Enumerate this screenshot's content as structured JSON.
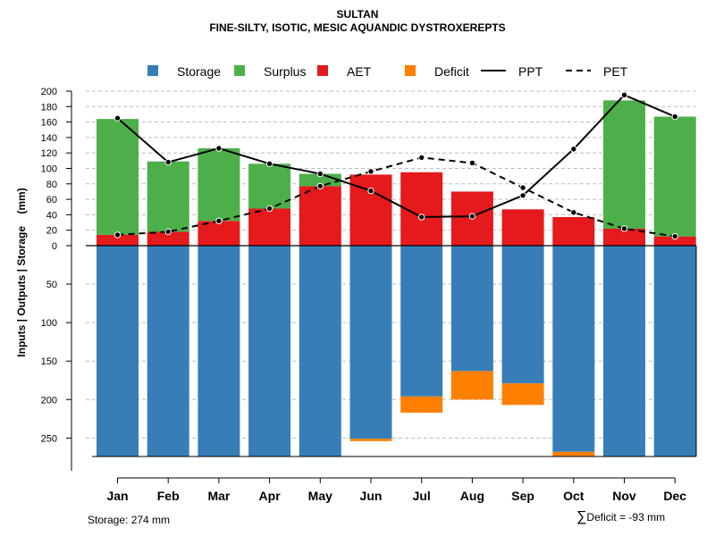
{
  "header": {
    "title": "SULTAN",
    "subtitle": "FINE-SILTY, ISOTIC, MESIC AQUANDIC DYSTROXEREPTS"
  },
  "footer": {
    "storage_text": "Storage: 274 mm",
    "deficit_symbol": "∑",
    "deficit_text": "Deficit = -93 mm"
  },
  "colors": {
    "storage": "#377EB8",
    "surplus": "#4DAF4A",
    "aet": "#E41A1C",
    "deficit": "#FF7F00",
    "line": "#000000",
    "grid": "#BBBBBB"
  },
  "chart_data": {
    "type": "bar",
    "title": "SULTAN",
    "subtitle": "FINE-SILTY, ISOTIC, MESIC AQUANDIC DYSTROXEREPTS",
    "ylabel": "Inputs | Outputs | Storage    (mm)",
    "xlabel": "",
    "categories": [
      "Jan",
      "Feb",
      "Mar",
      "Apr",
      "May",
      "Jun",
      "Jul",
      "Aug",
      "Sep",
      "Oct",
      "Nov",
      "Dec"
    ],
    "upper_ylim": [
      0,
      200
    ],
    "upper_ticks": [
      0,
      20,
      40,
      60,
      80,
      100,
      120,
      140,
      160,
      180,
      200
    ],
    "lower_ylim": [
      0,
      274
    ],
    "lower_ticks": [
      50,
      100,
      150,
      200,
      250
    ],
    "storage_capacity": 274,
    "legend": [
      "Storage",
      "Surplus",
      "AET",
      "Deficit",
      "PPT",
      "PET"
    ],
    "legend_position": "top",
    "grid": true,
    "series": [
      {
        "name": "AET",
        "kind": "bar-up",
        "values": [
          14,
          18,
          32,
          48,
          77,
          92,
          95,
          70,
          47,
          37,
          22,
          12
        ]
      },
      {
        "name": "Surplus",
        "kind": "bar-up",
        "values": [
          150,
          91,
          94,
          58,
          16,
          0,
          0,
          0,
          0,
          0,
          166,
          155
        ]
      },
      {
        "name": "Storage",
        "kind": "bar-down",
        "values": [
          274,
          274,
          274,
          274,
          274,
          251,
          196,
          163,
          179,
          268,
          274,
          274
        ]
      },
      {
        "name": "Deficit",
        "kind": "bar-down",
        "values": [
          0,
          0,
          0,
          0,
          0,
          3,
          21,
          37,
          28,
          6,
          0,
          0
        ]
      },
      {
        "name": "PPT",
        "kind": "line",
        "style": "solid",
        "values": [
          165,
          108,
          126,
          106,
          93,
          71,
          37,
          38,
          65,
          125,
          195,
          167
        ]
      },
      {
        "name": "PET",
        "kind": "line",
        "style": "dashed",
        "values": [
          14,
          18,
          32,
          48,
          77,
          96,
          114,
          107,
          75,
          43,
          22,
          12
        ]
      }
    ]
  }
}
